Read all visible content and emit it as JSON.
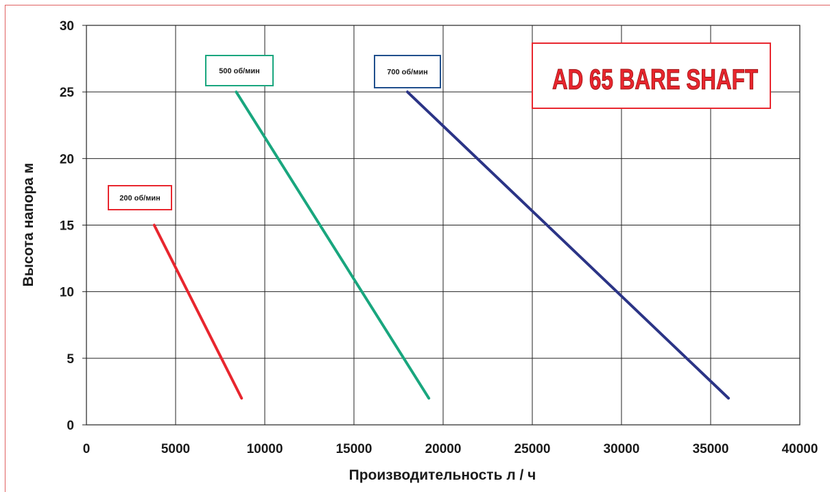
{
  "chart_data": {
    "type": "line",
    "title": "AD 65 BARE SHAFT",
    "xlabel": "Производительность л / ч",
    "ylabel": "Высота напора м",
    "xlim": [
      0,
      40000
    ],
    "ylim": [
      0,
      30
    ],
    "x_ticks": [
      "0",
      "5000",
      "10000",
      "15000",
      "20000",
      "25000",
      "30000",
      "35000",
      "40000"
    ],
    "y_ticks": [
      "0",
      "5",
      "10",
      "15",
      "20",
      "25",
      "30"
    ],
    "grid": true,
    "series": [
      {
        "name": "200 об/мин",
        "color": "#e8262e",
        "x": [
          3800,
          8700
        ],
        "y": [
          15,
          2
        ]
      },
      {
        "name": "500 об/мин",
        "color": "#19a67e",
        "x": [
          8400,
          19200
        ],
        "y": [
          25,
          2
        ]
      },
      {
        "name": "700 об/мин",
        "color": "#2b3486",
        "x": [
          18000,
          36000
        ],
        "y": [
          25,
          2
        ]
      }
    ],
    "colors": {
      "title_box_border": "#e8262e",
      "title_text": "#e8262e",
      "label_200_border": "#e8262e",
      "label_500_border": "#19a67e",
      "label_700_border": "#1f4e8c"
    }
  }
}
